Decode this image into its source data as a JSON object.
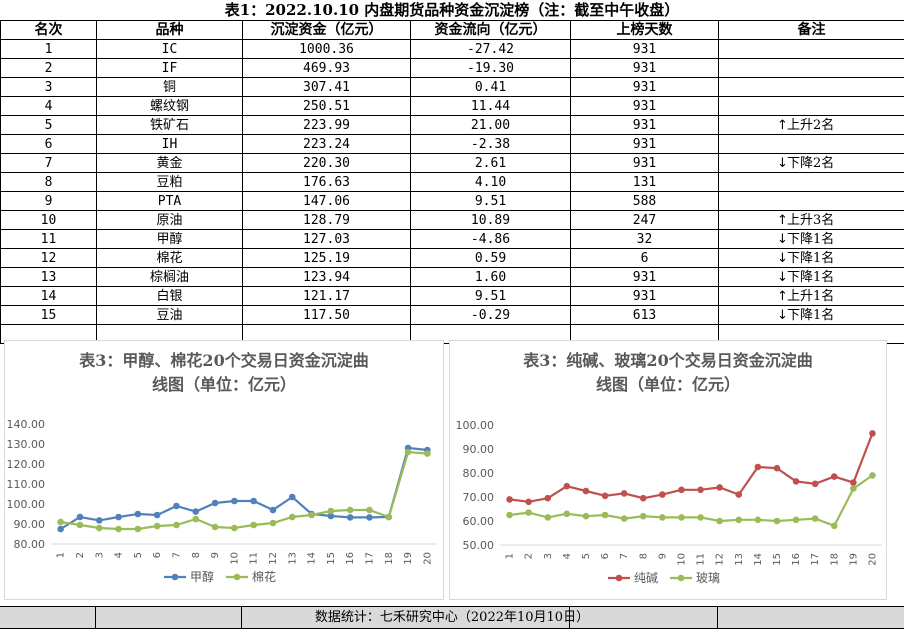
{
  "title": "表1：2022.10.10 内盘期货品种资金沉淀榜（注：截至中午收盘）",
  "table": {
    "headers": [
      "名次",
      "品种",
      "沉淀资金（亿元）",
      "资金流向（亿元）",
      "上榜天数",
      "备注"
    ],
    "rows": [
      [
        "1",
        "IC",
        "1000.36",
        "-27.42",
        "931",
        ""
      ],
      [
        "2",
        "IF",
        "469.93",
        "-19.30",
        "931",
        ""
      ],
      [
        "3",
        "铜",
        "307.41",
        "0.41",
        "931",
        ""
      ],
      [
        "4",
        "螺纹钢",
        "250.51",
        "11.44",
        "931",
        ""
      ],
      [
        "5",
        "铁矿石",
        "223.99",
        "21.00",
        "931",
        "上升2名"
      ],
      [
        "6",
        "IH",
        "223.24",
        "-2.38",
        "931",
        ""
      ],
      [
        "7",
        "黄金",
        "220.30",
        "2.61",
        "931",
        "下降2名"
      ],
      [
        "8",
        "豆粕",
        "176.63",
        "4.10",
        "131",
        ""
      ],
      [
        "9",
        "PTA",
        "147.06",
        "9.51",
        "588",
        ""
      ],
      [
        "10",
        "原油",
        "128.79",
        "10.89",
        "247",
        "上升3名"
      ],
      [
        "11",
        "甲醇",
        "127.03",
        "-4.86",
        "32",
        "下降1名"
      ],
      [
        "12",
        "棉花",
        "125.19",
        "0.59",
        "6",
        "下降1名"
      ],
      [
        "13",
        "棕榈油",
        "123.94",
        "1.60",
        "931",
        "下降1名"
      ],
      [
        "14",
        "白银",
        "121.17",
        "9.51",
        "931",
        "上升1名"
      ],
      [
        "15",
        "豆油",
        "117.50",
        "-0.29",
        "613",
        "下降1名"
      ]
    ],
    "note_arrows": [
      "",
      "",
      "",
      "",
      "↑",
      "",
      "↓",
      "",
      "",
      "↑",
      "↓",
      "↓",
      "↓",
      "↑",
      "↓"
    ]
  },
  "footer": "数据统计：七禾研究中心（2022年10月10日）",
  "chart_data": [
    {
      "type": "line",
      "title_line1": "表3：甲醇、棉花20个交易日资金沉淀曲",
      "title_line2": "线图（单位：亿元）",
      "categories": [
        "1",
        "2",
        "3",
        "4",
        "5",
        "6",
        "7",
        "8",
        "9",
        "10",
        "11",
        "12",
        "13",
        "14",
        "15",
        "16",
        "17",
        "18",
        "19",
        "20"
      ],
      "ylim": [
        80,
        140
      ],
      "yticks": [
        "80.00",
        "90.00",
        "100.00",
        "110.00",
        "120.00",
        "130.00",
        "140.00"
      ],
      "legend": "bottom",
      "grid": false,
      "series": [
        {
          "name": "甲醇",
          "color": "#4f81bd",
          "values": [
            87.5,
            93.5,
            91.8,
            93.5,
            95.0,
            94.5,
            99.0,
            96.2,
            100.5,
            101.5,
            101.5,
            97.0,
            103.5,
            95.0,
            94.0,
            93.3,
            93.3,
            93.5,
            128.0,
            127.0
          ]
        },
        {
          "name": "棉花",
          "color": "#9bbb59",
          "values": [
            91.0,
            89.5,
            88.0,
            87.5,
            87.5,
            89.0,
            89.5,
            92.5,
            88.5,
            88.0,
            89.5,
            90.5,
            93.5,
            94.5,
            96.5,
            97.0,
            97.0,
            93.5,
            126.0,
            125.2
          ]
        }
      ]
    },
    {
      "type": "line",
      "title_line1": "表3：纯碱、玻璃20个交易日资金沉淀曲",
      "title_line2": "线图（单位：亿元）",
      "categories": [
        "1",
        "2",
        "3",
        "4",
        "5",
        "6",
        "7",
        "8",
        "9",
        "10",
        "11",
        "12",
        "13",
        "14",
        "15",
        "16",
        "17",
        "18",
        "19",
        "20"
      ],
      "ylim": [
        50,
        100
      ],
      "yticks": [
        "50.00",
        "60.00",
        "70.00",
        "80.00",
        "90.00",
        "100.00"
      ],
      "legend": "bottom",
      "grid": false,
      "series": [
        {
          "name": "纯碱",
          "color": "#c0504d",
          "values": [
            69.0,
            68.0,
            69.5,
            74.5,
            72.5,
            70.5,
            71.5,
            69.5,
            71.0,
            73.0,
            73.0,
            74.0,
            71.0,
            82.5,
            82.0,
            76.5,
            75.5,
            78.5,
            76.0,
            96.5
          ]
        },
        {
          "name": "玻璃",
          "color": "#9bbb59",
          "values": [
            62.5,
            63.5,
            61.5,
            63.0,
            62.0,
            62.5,
            61.0,
            62.0,
            61.5,
            61.5,
            61.5,
            60.0,
            60.5,
            60.5,
            60.0,
            60.5,
            61.0,
            58.0,
            73.5,
            79.0
          ]
        }
      ]
    }
  ]
}
